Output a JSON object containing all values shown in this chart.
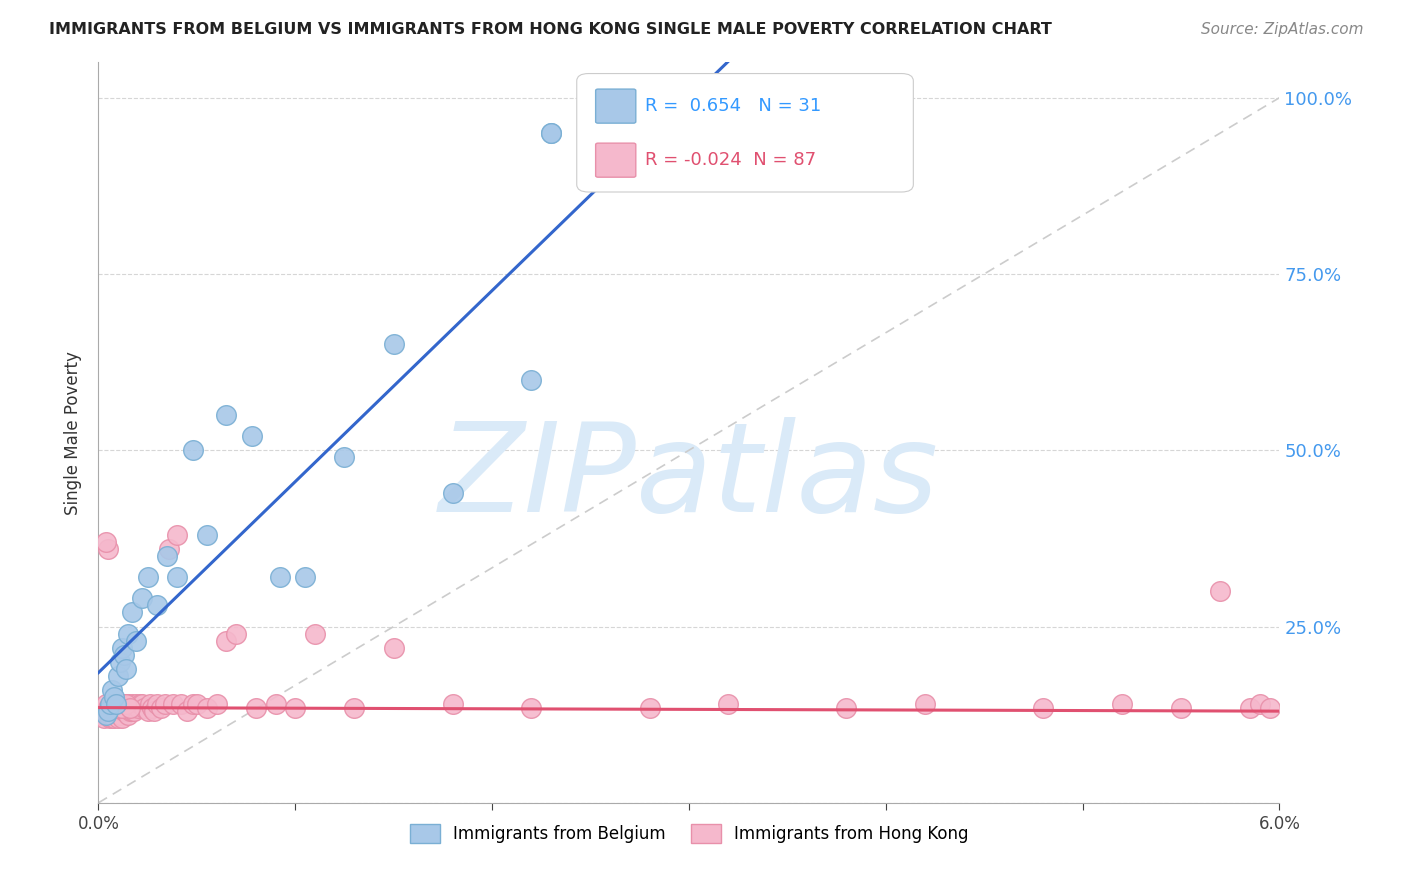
{
  "title": "IMMIGRANTS FROM BELGIUM VS IMMIGRANTS FROM HONG KONG SINGLE MALE POVERTY CORRELATION CHART",
  "source": "Source: ZipAtlas.com",
  "ylabel": "Single Male Poverty",
  "xlim": [
    0.0,
    6.0
  ],
  "ylim": [
    0.0,
    1.05
  ],
  "belgium_R": 0.654,
  "belgium_N": 31,
  "hongkong_R": -0.024,
  "hongkong_N": 87,
  "belgium_color": "#a8c8e8",
  "belgium_edge_color": "#7aafd4",
  "hongkong_color": "#f5b8cc",
  "hongkong_edge_color": "#e890aa",
  "belgium_line_color": "#3366cc",
  "hongkong_line_color": "#e05070",
  "diagonal_color": "#cccccc",
  "watermark_color": "#ddeeff",
  "watermark_text": "ZIPatlas",
  "legend_belgium": "Immigrants from Belgium",
  "legend_hongkong": "Immigrants from Hong Kong",
  "bel_x": [
    0.04,
    0.05,
    0.06,
    0.07,
    0.08,
    0.09,
    0.1,
    0.11,
    0.12,
    0.13,
    0.14,
    0.15,
    0.17,
    0.19,
    0.22,
    0.25,
    0.3,
    0.35,
    0.4,
    0.48,
    0.55,
    0.65,
    0.78,
    0.92,
    1.05,
    1.25,
    1.5,
    1.8,
    2.2,
    2.3,
    2.3
  ],
  "bel_y": [
    0.125,
    0.13,
    0.14,
    0.16,
    0.15,
    0.14,
    0.18,
    0.2,
    0.22,
    0.21,
    0.19,
    0.24,
    0.27,
    0.23,
    0.29,
    0.32,
    0.28,
    0.35,
    0.32,
    0.5,
    0.38,
    0.55,
    0.52,
    0.32,
    0.32,
    0.49,
    0.65,
    0.44,
    0.6,
    0.95,
    0.95
  ],
  "hk_x": [
    0.02,
    0.03,
    0.03,
    0.04,
    0.04,
    0.05,
    0.05,
    0.06,
    0.06,
    0.07,
    0.07,
    0.07,
    0.08,
    0.08,
    0.08,
    0.09,
    0.09,
    0.1,
    0.1,
    0.1,
    0.11,
    0.11,
    0.12,
    0.12,
    0.12,
    0.13,
    0.13,
    0.14,
    0.14,
    0.15,
    0.15,
    0.16,
    0.16,
    0.17,
    0.17,
    0.18,
    0.18,
    0.19,
    0.2,
    0.21,
    0.22,
    0.23,
    0.25,
    0.26,
    0.27,
    0.28,
    0.3,
    0.32,
    0.34,
    0.36,
    0.38,
    0.4,
    0.42,
    0.45,
    0.48,
    0.5,
    0.55,
    0.6,
    0.65,
    0.7,
    0.8,
    0.9,
    1.0,
    1.1,
    1.3,
    1.5,
    1.8,
    2.2,
    2.8,
    3.2,
    3.8,
    4.2,
    4.8,
    5.2,
    5.5,
    5.7,
    5.85,
    5.9,
    5.95,
    0.05,
    0.04,
    0.06,
    0.08,
    0.1,
    0.12,
    0.14,
    0.16
  ],
  "hk_y": [
    0.125,
    0.13,
    0.12,
    0.13,
    0.14,
    0.125,
    0.135,
    0.13,
    0.12,
    0.14,
    0.13,
    0.12,
    0.135,
    0.13,
    0.12,
    0.14,
    0.13,
    0.135,
    0.13,
    0.12,
    0.14,
    0.125,
    0.13,
    0.14,
    0.12,
    0.135,
    0.13,
    0.14,
    0.13,
    0.125,
    0.14,
    0.13,
    0.135,
    0.14,
    0.13,
    0.135,
    0.13,
    0.14,
    0.135,
    0.14,
    0.14,
    0.135,
    0.13,
    0.14,
    0.135,
    0.13,
    0.14,
    0.135,
    0.14,
    0.36,
    0.14,
    0.38,
    0.14,
    0.13,
    0.14,
    0.14,
    0.135,
    0.14,
    0.23,
    0.24,
    0.135,
    0.14,
    0.135,
    0.24,
    0.135,
    0.22,
    0.14,
    0.135,
    0.135,
    0.14,
    0.135,
    0.14,
    0.135,
    0.14,
    0.135,
    0.3,
    0.135,
    0.14,
    0.135,
    0.36,
    0.37,
    0.135,
    0.14,
    0.135,
    0.135,
    0.14,
    0.135
  ]
}
